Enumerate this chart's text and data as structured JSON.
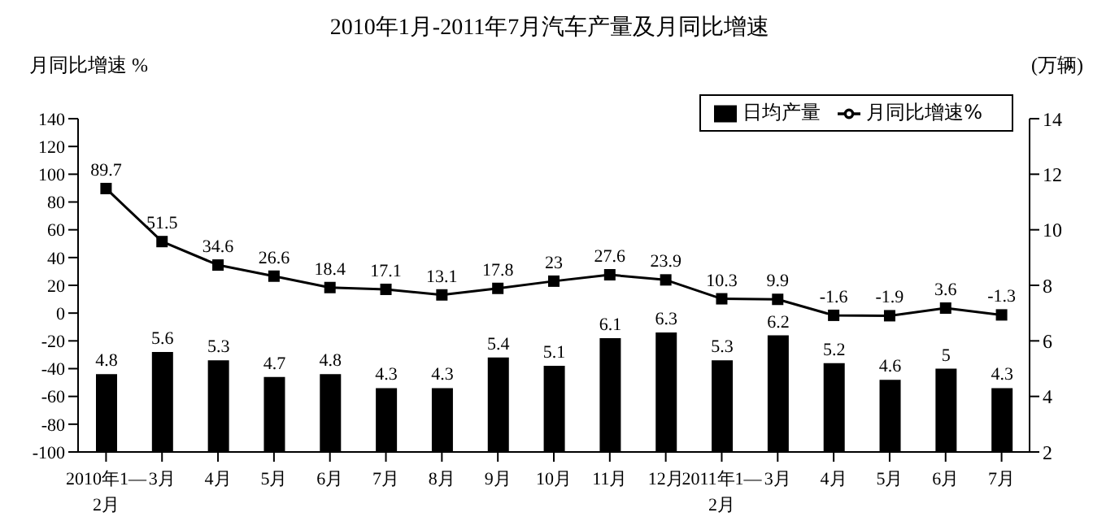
{
  "chart_data": {
    "type": "bar",
    "title": "2010年1月-2011年7月汽车产量及月同比增速",
    "ylabel": "月同比增速 %",
    "y2label": "(万辆)",
    "categories": [
      "2010年1—\n2月",
      "3月",
      "4月",
      "5月",
      "6月",
      "7月",
      "8月",
      "9月",
      "10月",
      "11月",
      "12月",
      "2011年1—\n2月",
      "3月",
      "4月",
      "5月",
      "6月",
      "7月"
    ],
    "series": [
      {
        "name": "日均产量",
        "axis": "y2",
        "color": "#000000",
        "values": [
          4.8,
          5.6,
          5.3,
          4.7,
          4.8,
          4.3,
          4.3,
          5.4,
          5.1,
          6.1,
          6.3,
          5.3,
          6.2,
          5.2,
          4.6,
          5,
          4.3
        ]
      },
      {
        "name": "月同比增速%",
        "type": "line",
        "color": "#000000",
        "values": [
          89.7,
          51.5,
          34.6,
          26.6,
          18.4,
          17.1,
          13.1,
          17.8,
          23,
          27.6,
          23.9,
          10.3,
          9.9,
          -1.6,
          -1.9,
          3.6,
          -1.3
        ]
      }
    ],
    "ylim": [
      -100,
      140
    ],
    "yticks": [
      -100,
      -80,
      -60,
      -40,
      -20,
      0,
      20,
      40,
      60,
      80,
      100,
      120,
      140
    ],
    "y2lim": [
      2,
      14
    ],
    "y2ticks": [
      2,
      4,
      6,
      8,
      10,
      12,
      14
    ],
    "data_labels": true,
    "legend": "top right",
    "marker": "square",
    "grid": false
  }
}
